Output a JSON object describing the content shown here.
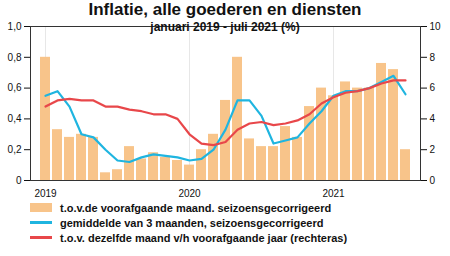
{
  "chart_data": {
    "type": "bar",
    "title": "Inflatie, alle goederen en diensten",
    "subtitle": "januari 2019 - juli 2021 (%)",
    "categories": [
      "2019",
      null,
      null,
      null,
      null,
      null,
      null,
      null,
      null,
      null,
      null,
      null,
      "2020",
      null,
      null,
      null,
      null,
      null,
      null,
      null,
      null,
      null,
      null,
      null,
      "2021",
      null,
      null,
      null,
      null,
      null,
      null
    ],
    "series": [
      {
        "name": "t.o.v.de voorafgaande maand. seizoensgecorrigeerd",
        "type": "bar",
        "color": "#f8c48a",
        "values": [
          0.8,
          0.33,
          0.28,
          0.3,
          0.28,
          0.05,
          0.07,
          0.22,
          0.14,
          0.18,
          0.15,
          0.13,
          0.1,
          0.2,
          0.3,
          0.52,
          0.8,
          0.27,
          0.22,
          0.22,
          0.35,
          0.28,
          0.48,
          0.6,
          0.55,
          0.64,
          0.6,
          0.6,
          0.76,
          0.72,
          0.2
        ]
      },
      {
        "name": "gemiddelde van 3 maanden, seizoensgecorrigeerd",
        "type": "line",
        "color": "#1fb5e0",
        "values": [
          0.55,
          0.58,
          0.48,
          0.3,
          0.28,
          0.2,
          0.13,
          0.12,
          0.15,
          0.17,
          0.16,
          0.15,
          0.13,
          0.14,
          0.2,
          0.33,
          0.52,
          0.52,
          0.42,
          0.24,
          0.26,
          0.28,
          0.37,
          0.45,
          0.55,
          0.58,
          0.58,
          0.6,
          0.64,
          0.68,
          0.56
        ]
      },
      {
        "name": "t.o.v. dezelfde maand v/h voorafgaande jaar (rechteras)",
        "type": "line",
        "color": "#e8474a",
        "axis": "y2",
        "values": [
          4.8,
          5.2,
          5.3,
          5.2,
          5.2,
          4.8,
          4.8,
          4.6,
          4.5,
          4.3,
          4.3,
          4.0,
          3.0,
          2.4,
          2.3,
          2.5,
          3.3,
          3.7,
          3.8,
          3.6,
          3.7,
          3.9,
          4.3,
          5.0,
          5.4,
          5.7,
          5.8,
          6.0,
          6.3,
          6.5,
          6.5
        ]
      }
    ],
    "ylim": [
      0,
      1
    ],
    "yticks": [
      0,
      {
        "value": 0.2,
        "label": "0,2"
      },
      {
        "value": 0.4,
        "label": "0,4"
      },
      {
        "value": 0.6,
        "label": "0,6"
      },
      {
        "value": 0.8,
        "label": "0,8"
      },
      {
        "value": 1,
        "label": "1,0"
      }
    ],
    "y2lim": [
      0,
      10
    ],
    "y2ticks": [
      0,
      2,
      4,
      6,
      8,
      10
    ],
    "grid": true,
    "legend": "bottom"
  }
}
